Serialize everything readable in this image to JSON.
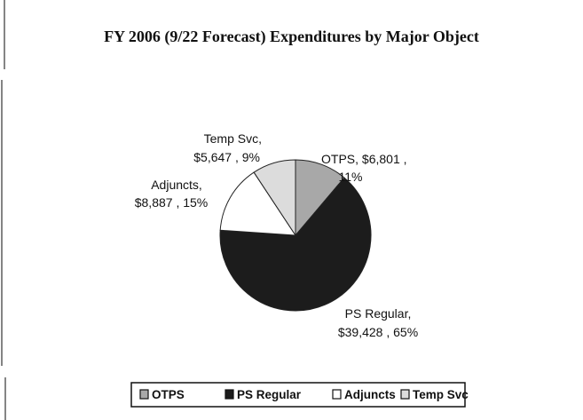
{
  "chart_data": {
    "type": "pie",
    "title": "FY 2006 (9/22 Forecast) Expenditures by Major Object",
    "categories": [
      "OTPS",
      "PS Regular",
      "Adjuncts",
      "Temp Svc"
    ],
    "values": [
      6801,
      39428,
      8887,
      5647
    ],
    "value_labels": [
      "$6,801",
      "$39,428",
      "$8,887",
      "$5,647"
    ],
    "percent_labels": [
      "11%",
      "65%",
      "15%",
      "9%"
    ],
    "colors": [
      "#a8a8a8",
      "#1c1c1c",
      "#ffffff",
      "#dcdcdc"
    ],
    "legend": "bottom"
  }
}
